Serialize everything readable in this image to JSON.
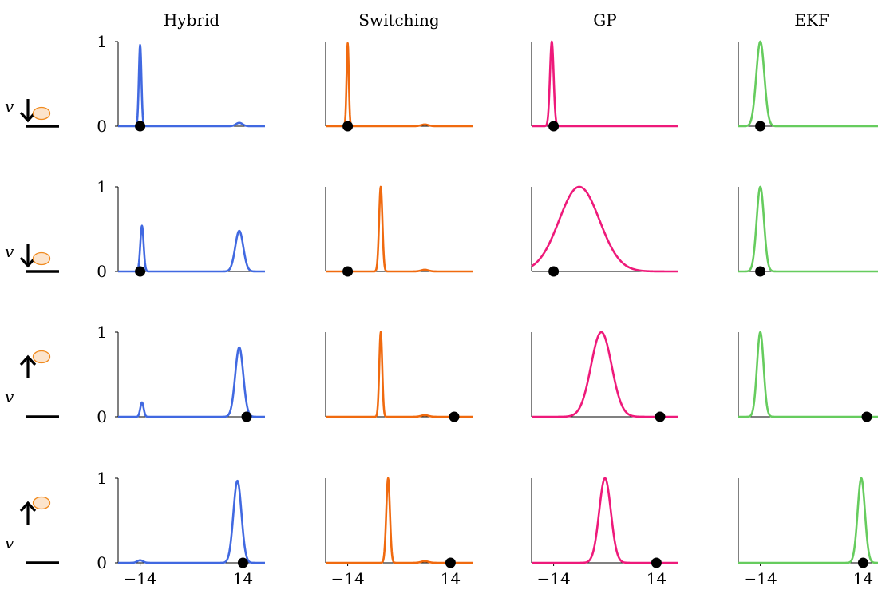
{
  "colors": {
    "Hybrid": "#4169e1",
    "Switching": "#f06a0f",
    "GP": "#ee1a7a",
    "EKF": "#66cc5e"
  },
  "methods": [
    "Hybrid",
    "Switching",
    "GP",
    "EKF"
  ],
  "row_labels": [
    {
      "var": "v",
      "arrow": "down"
    },
    {
      "var": "v",
      "arrow": "down"
    },
    {
      "var": "v",
      "arrow": "up"
    },
    {
      "var": "v",
      "arrow": "up"
    }
  ],
  "axes": {
    "xlim": [
      -20,
      20
    ],
    "ylim": [
      0,
      1
    ],
    "yticks": [
      0,
      1
    ],
    "ytick_labels": [
      "0",
      "1"
    ],
    "xticks": [
      -14,
      14
    ],
    "xtick_labels": [
      "−14",
      "14"
    ]
  },
  "chart_data": [
    {
      "type": "line",
      "row": 0,
      "col": 0,
      "method": "Hybrid",
      "true_x": -14,
      "peaks": [
        {
          "mu": -14,
          "sigma": 0.35,
          "amp": 0.96
        },
        {
          "mu": 13,
          "sigma": 0.9,
          "amp": 0.04
        }
      ]
    },
    {
      "type": "line",
      "row": 0,
      "col": 1,
      "method": "Switching",
      "true_x": -14,
      "peaks": [
        {
          "mu": -14,
          "sigma": 0.3,
          "amp": 0.98
        },
        {
          "mu": 7,
          "sigma": 1.0,
          "amp": 0.02
        }
      ]
    },
    {
      "type": "line",
      "row": 0,
      "col": 2,
      "method": "GP",
      "true_x": -14,
      "peaks": [
        {
          "mu": -14.5,
          "sigma": 0.5,
          "amp": 1.0
        }
      ]
    },
    {
      "type": "line",
      "row": 0,
      "col": 3,
      "method": "EKF",
      "true_x": -14,
      "peaks": [
        {
          "mu": -14,
          "sigma": 1.1,
          "amp": 1.0
        }
      ]
    },
    {
      "type": "line",
      "row": 1,
      "col": 0,
      "method": "Hybrid",
      "true_x": -14,
      "peaks": [
        {
          "mu": -13.5,
          "sigma": 0.45,
          "amp": 0.54
        },
        {
          "mu": 13,
          "sigma": 1.1,
          "amp": 0.48
        }
      ]
    },
    {
      "type": "line",
      "row": 1,
      "col": 1,
      "method": "Switching",
      "true_x": -14,
      "peaks": [
        {
          "mu": -5,
          "sigma": 0.45,
          "amp": 1.0
        },
        {
          "mu": 7,
          "sigma": 1.0,
          "amp": 0.02
        }
      ]
    },
    {
      "type": "line",
      "row": 1,
      "col": 2,
      "method": "GP",
      "true_x": -14,
      "peaks": [
        {
          "mu": -7,
          "sigma": 5.5,
          "amp": 1.0
        }
      ]
    },
    {
      "type": "line",
      "row": 1,
      "col": 3,
      "method": "EKF",
      "true_x": -14,
      "peaks": [
        {
          "mu": -14,
          "sigma": 1.0,
          "amp": 1.0
        }
      ]
    },
    {
      "type": "line",
      "row": 2,
      "col": 0,
      "method": "Hybrid",
      "true_x": 15,
      "peaks": [
        {
          "mu": -13.5,
          "sigma": 0.45,
          "amp": 0.17
        },
        {
          "mu": 13,
          "sigma": 1.1,
          "amp": 0.82
        }
      ]
    },
    {
      "type": "line",
      "row": 2,
      "col": 1,
      "method": "Switching",
      "true_x": 15,
      "peaks": [
        {
          "mu": -5,
          "sigma": 0.4,
          "amp": 1.0
        },
        {
          "mu": 7,
          "sigma": 1.0,
          "amp": 0.02
        }
      ]
    },
    {
      "type": "line",
      "row": 2,
      "col": 2,
      "method": "GP",
      "true_x": 15,
      "peaks": [
        {
          "mu": -1,
          "sigma": 2.8,
          "amp": 1.0
        }
      ]
    },
    {
      "type": "line",
      "row": 2,
      "col": 3,
      "method": "EKF",
      "true_x": 15,
      "peaks": [
        {
          "mu": -14,
          "sigma": 0.9,
          "amp": 1.0
        }
      ]
    },
    {
      "type": "line",
      "row": 3,
      "col": 0,
      "method": "Hybrid",
      "true_x": 14,
      "peaks": [
        {
          "mu": -14,
          "sigma": 0.8,
          "amp": 0.03
        },
        {
          "mu": 12.5,
          "sigma": 1.1,
          "amp": 0.97
        }
      ]
    },
    {
      "type": "line",
      "row": 3,
      "col": 1,
      "method": "Switching",
      "true_x": 14,
      "peaks": [
        {
          "mu": -3,
          "sigma": 0.5,
          "amp": 1.0
        },
        {
          "mu": 7,
          "sigma": 1.0,
          "amp": 0.02
        }
      ]
    },
    {
      "type": "line",
      "row": 3,
      "col": 2,
      "method": "GP",
      "true_x": 14,
      "peaks": [
        {
          "mu": 0,
          "sigma": 1.6,
          "amp": 1.0
        }
      ]
    },
    {
      "type": "line",
      "row": 3,
      "col": 3,
      "method": "EKF",
      "true_x": 14,
      "peaks": [
        {
          "mu": 13.5,
          "sigma": 1.0,
          "amp": 1.0
        }
      ]
    }
  ]
}
